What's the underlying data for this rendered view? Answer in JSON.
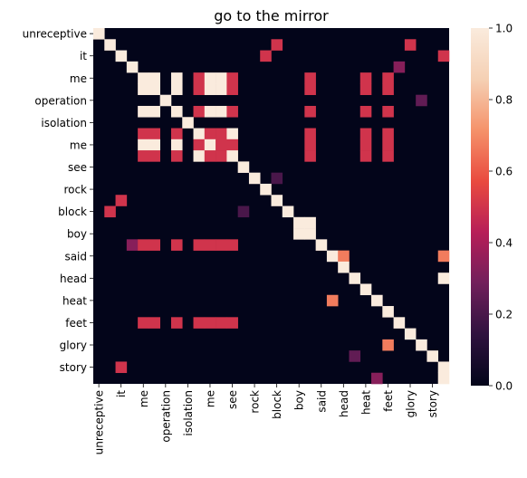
{
  "chart_data": {
    "type": "heatmap",
    "title": "go to the mirror",
    "xlabel": "",
    "ylabel": "",
    "x_tick_labels": [
      "unreceptive",
      "it",
      "me",
      "operation",
      "isolation",
      "me",
      "see",
      "rock",
      "block",
      "boy",
      "said",
      "head",
      "heat",
      "feet",
      "glory",
      "story"
    ],
    "y_tick_labels": [
      "unreceptive",
      "it",
      "me",
      "operation",
      "isolation",
      "me",
      "see",
      "rock",
      "block",
      "boy",
      "said",
      "head",
      "heat",
      "feet",
      "glory",
      "story"
    ],
    "n_rows": 32,
    "n_cols": 32,
    "tick_every": 2,
    "cells": [
      {
        "r": 0,
        "c": 0,
        "v": 1.0
      },
      {
        "r": 1,
        "c": 1,
        "v": 1.0
      },
      {
        "r": 1,
        "c": 16,
        "v": 0.5
      },
      {
        "r": 1,
        "c": 28,
        "v": 0.5
      },
      {
        "r": 2,
        "c": 2,
        "v": 1.0
      },
      {
        "r": 2,
        "c": 15,
        "v": 0.5
      },
      {
        "r": 2,
        "c": 31,
        "v": 0.5
      },
      {
        "r": 3,
        "c": 3,
        "v": 1.0
      },
      {
        "r": 3,
        "c": 27,
        "v": 0.33
      },
      {
        "r": 4,
        "c": 4,
        "v": 1.0
      },
      {
        "r": 4,
        "c": 5,
        "v": 1.0
      },
      {
        "r": 4,
        "c": 7,
        "v": 1.0
      },
      {
        "r": 4,
        "c": 9,
        "v": 0.5
      },
      {
        "r": 4,
        "c": 10,
        "v": 1.0
      },
      {
        "r": 4,
        "c": 11,
        "v": 1.0
      },
      {
        "r": 4,
        "c": 12,
        "v": 0.5
      },
      {
        "r": 4,
        "c": 19,
        "v": 0.5
      },
      {
        "r": 4,
        "c": 24,
        "v": 0.5
      },
      {
        "r": 4,
        "c": 26,
        "v": 0.5
      },
      {
        "r": 5,
        "c": 4,
        "v": 1.0
      },
      {
        "r": 5,
        "c": 5,
        "v": 1.0
      },
      {
        "r": 5,
        "c": 7,
        "v": 1.0
      },
      {
        "r": 5,
        "c": 9,
        "v": 0.5
      },
      {
        "r": 5,
        "c": 10,
        "v": 1.0
      },
      {
        "r": 5,
        "c": 11,
        "v": 1.0
      },
      {
        "r": 5,
        "c": 12,
        "v": 0.5
      },
      {
        "r": 5,
        "c": 19,
        "v": 0.5
      },
      {
        "r": 5,
        "c": 24,
        "v": 0.5
      },
      {
        "r": 5,
        "c": 26,
        "v": 0.5
      },
      {
        "r": 6,
        "c": 6,
        "v": 1.0
      },
      {
        "r": 6,
        "c": 29,
        "v": 0.25
      },
      {
        "r": 7,
        "c": 4,
        "v": 1.0
      },
      {
        "r": 7,
        "c": 5,
        "v": 1.0
      },
      {
        "r": 7,
        "c": 7,
        "v": 1.0
      },
      {
        "r": 7,
        "c": 9,
        "v": 0.5
      },
      {
        "r": 7,
        "c": 10,
        "v": 1.0
      },
      {
        "r": 7,
        "c": 11,
        "v": 1.0
      },
      {
        "r": 7,
        "c": 12,
        "v": 0.5
      },
      {
        "r": 7,
        "c": 19,
        "v": 0.5
      },
      {
        "r": 7,
        "c": 24,
        "v": 0.5
      },
      {
        "r": 7,
        "c": 26,
        "v": 0.5
      },
      {
        "r": 8,
        "c": 8,
        "v": 1.0
      },
      {
        "r": 9,
        "c": 4,
        "v": 0.5
      },
      {
        "r": 9,
        "c": 5,
        "v": 0.5
      },
      {
        "r": 9,
        "c": 7,
        "v": 0.5
      },
      {
        "r": 9,
        "c": 9,
        "v": 1.0
      },
      {
        "r": 9,
        "c": 10,
        "v": 0.5
      },
      {
        "r": 9,
        "c": 11,
        "v": 0.5
      },
      {
        "r": 9,
        "c": 12,
        "v": 1.0
      },
      {
        "r": 9,
        "c": 19,
        "v": 0.5
      },
      {
        "r": 9,
        "c": 24,
        "v": 0.5
      },
      {
        "r": 9,
        "c": 26,
        "v": 0.5
      },
      {
        "r": 10,
        "c": 4,
        "v": 1.0
      },
      {
        "r": 10,
        "c": 5,
        "v": 1.0
      },
      {
        "r": 10,
        "c": 7,
        "v": 1.0
      },
      {
        "r": 10,
        "c": 9,
        "v": 0.5
      },
      {
        "r": 10,
        "c": 10,
        "v": 1.0
      },
      {
        "r": 10,
        "c": 11,
        "v": 0.5
      },
      {
        "r": 10,
        "c": 12,
        "v": 0.5
      },
      {
        "r": 10,
        "c": 19,
        "v": 0.5
      },
      {
        "r": 10,
        "c": 24,
        "v": 0.5
      },
      {
        "r": 10,
        "c": 26,
        "v": 0.5
      },
      {
        "r": 11,
        "c": 4,
        "v": 0.5
      },
      {
        "r": 11,
        "c": 5,
        "v": 0.5
      },
      {
        "r": 11,
        "c": 7,
        "v": 0.5
      },
      {
        "r": 11,
        "c": 9,
        "v": 1.0
      },
      {
        "r": 11,
        "c": 10,
        "v": 0.5
      },
      {
        "r": 11,
        "c": 11,
        "v": 0.5
      },
      {
        "r": 11,
        "c": 12,
        "v": 1.0
      },
      {
        "r": 11,
        "c": 19,
        "v": 0.5
      },
      {
        "r": 11,
        "c": 24,
        "v": 0.5
      },
      {
        "r": 11,
        "c": 26,
        "v": 0.5
      },
      {
        "r": 12,
        "c": 13,
        "v": 1.0
      },
      {
        "r": 13,
        "c": 14,
        "v": 1.0
      },
      {
        "r": 13,
        "c": 16,
        "v": 0.2
      },
      {
        "r": 14,
        "c": 15,
        "v": 1.0
      },
      {
        "r": 15,
        "c": 2,
        "v": 0.5
      },
      {
        "r": 15,
        "c": 16,
        "v": 1.0
      },
      {
        "r": 16,
        "c": 1,
        "v": 0.5
      },
      {
        "r": 16,
        "c": 13,
        "v": 0.2
      },
      {
        "r": 16,
        "c": 17,
        "v": 1.0
      },
      {
        "r": 17,
        "c": 18,
        "v": 1.0
      },
      {
        "r": 17,
        "c": 19,
        "v": 1.0
      },
      {
        "r": 18,
        "c": 18,
        "v": 1.0
      },
      {
        "r": 18,
        "c": 19,
        "v": 1.0
      },
      {
        "r": 19,
        "c": 3,
        "v": 0.33
      },
      {
        "r": 19,
        "c": 4,
        "v": 0.5
      },
      {
        "r": 19,
        "c": 5,
        "v": 0.5
      },
      {
        "r": 19,
        "c": 7,
        "v": 0.5
      },
      {
        "r": 19,
        "c": 9,
        "v": 0.5
      },
      {
        "r": 19,
        "c": 10,
        "v": 0.5
      },
      {
        "r": 19,
        "c": 11,
        "v": 0.5
      },
      {
        "r": 19,
        "c": 12,
        "v": 0.5
      },
      {
        "r": 19,
        "c": 20,
        "v": 1.0
      },
      {
        "r": 20,
        "c": 21,
        "v": 1.0
      },
      {
        "r": 20,
        "c": 22,
        "v": 0.67
      },
      {
        "r": 20,
        "c": 31,
        "v": 0.67
      },
      {
        "r": 21,
        "c": 22,
        "v": 1.0
      },
      {
        "r": 22,
        "c": 23,
        "v": 1.0
      },
      {
        "r": 22,
        "c": 31,
        "v": 1.0
      },
      {
        "r": 23,
        "c": 24,
        "v": 1.0
      },
      {
        "r": 24,
        "c": 21,
        "v": 0.67
      },
      {
        "r": 24,
        "c": 25,
        "v": 1.0
      },
      {
        "r": 25,
        "c": 26,
        "v": 1.0
      },
      {
        "r": 26,
        "c": 4,
        "v": 0.5
      },
      {
        "r": 26,
        "c": 5,
        "v": 0.5
      },
      {
        "r": 26,
        "c": 7,
        "v": 0.5
      },
      {
        "r": 26,
        "c": 9,
        "v": 0.5
      },
      {
        "r": 26,
        "c": 10,
        "v": 0.5
      },
      {
        "r": 26,
        "c": 11,
        "v": 0.5
      },
      {
        "r": 26,
        "c": 12,
        "v": 0.5
      },
      {
        "r": 26,
        "c": 27,
        "v": 1.0
      },
      {
        "r": 27,
        "c": 28,
        "v": 1.0
      },
      {
        "r": 28,
        "c": 29,
        "v": 1.0
      },
      {
        "r": 28,
        "c": 26,
        "v": 0.67
      },
      {
        "r": 29,
        "c": 30,
        "v": 1.0
      },
      {
        "r": 29,
        "c": 23,
        "v": 0.25
      },
      {
        "r": 30,
        "c": 31,
        "v": 1.0
      },
      {
        "r": 30,
        "c": 2,
        "v": 0.5
      },
      {
        "r": 31,
        "c": 25,
        "v": 0.33
      },
      {
        "r": 31,
        "c": 31,
        "v": 1.0
      }
    ],
    "color_range": [
      0.0,
      1.0
    ],
    "colorbar_ticks": [
      "0.0",
      "0.2",
      "0.4",
      "0.6",
      "0.8",
      "1.0"
    ],
    "colorbar_values": [
      0.0,
      0.2,
      0.4,
      0.6,
      0.8,
      1.0
    ],
    "colormap": "rocket",
    "colormap_stops": [
      "#03051a",
      "#2f123f",
      "#711f5b",
      "#b71e58",
      "#e94a3f",
      "#f5926a",
      "#f5d0b4",
      "#faebdd"
    ],
    "grid": false,
    "legend": "colorbar-right"
  }
}
